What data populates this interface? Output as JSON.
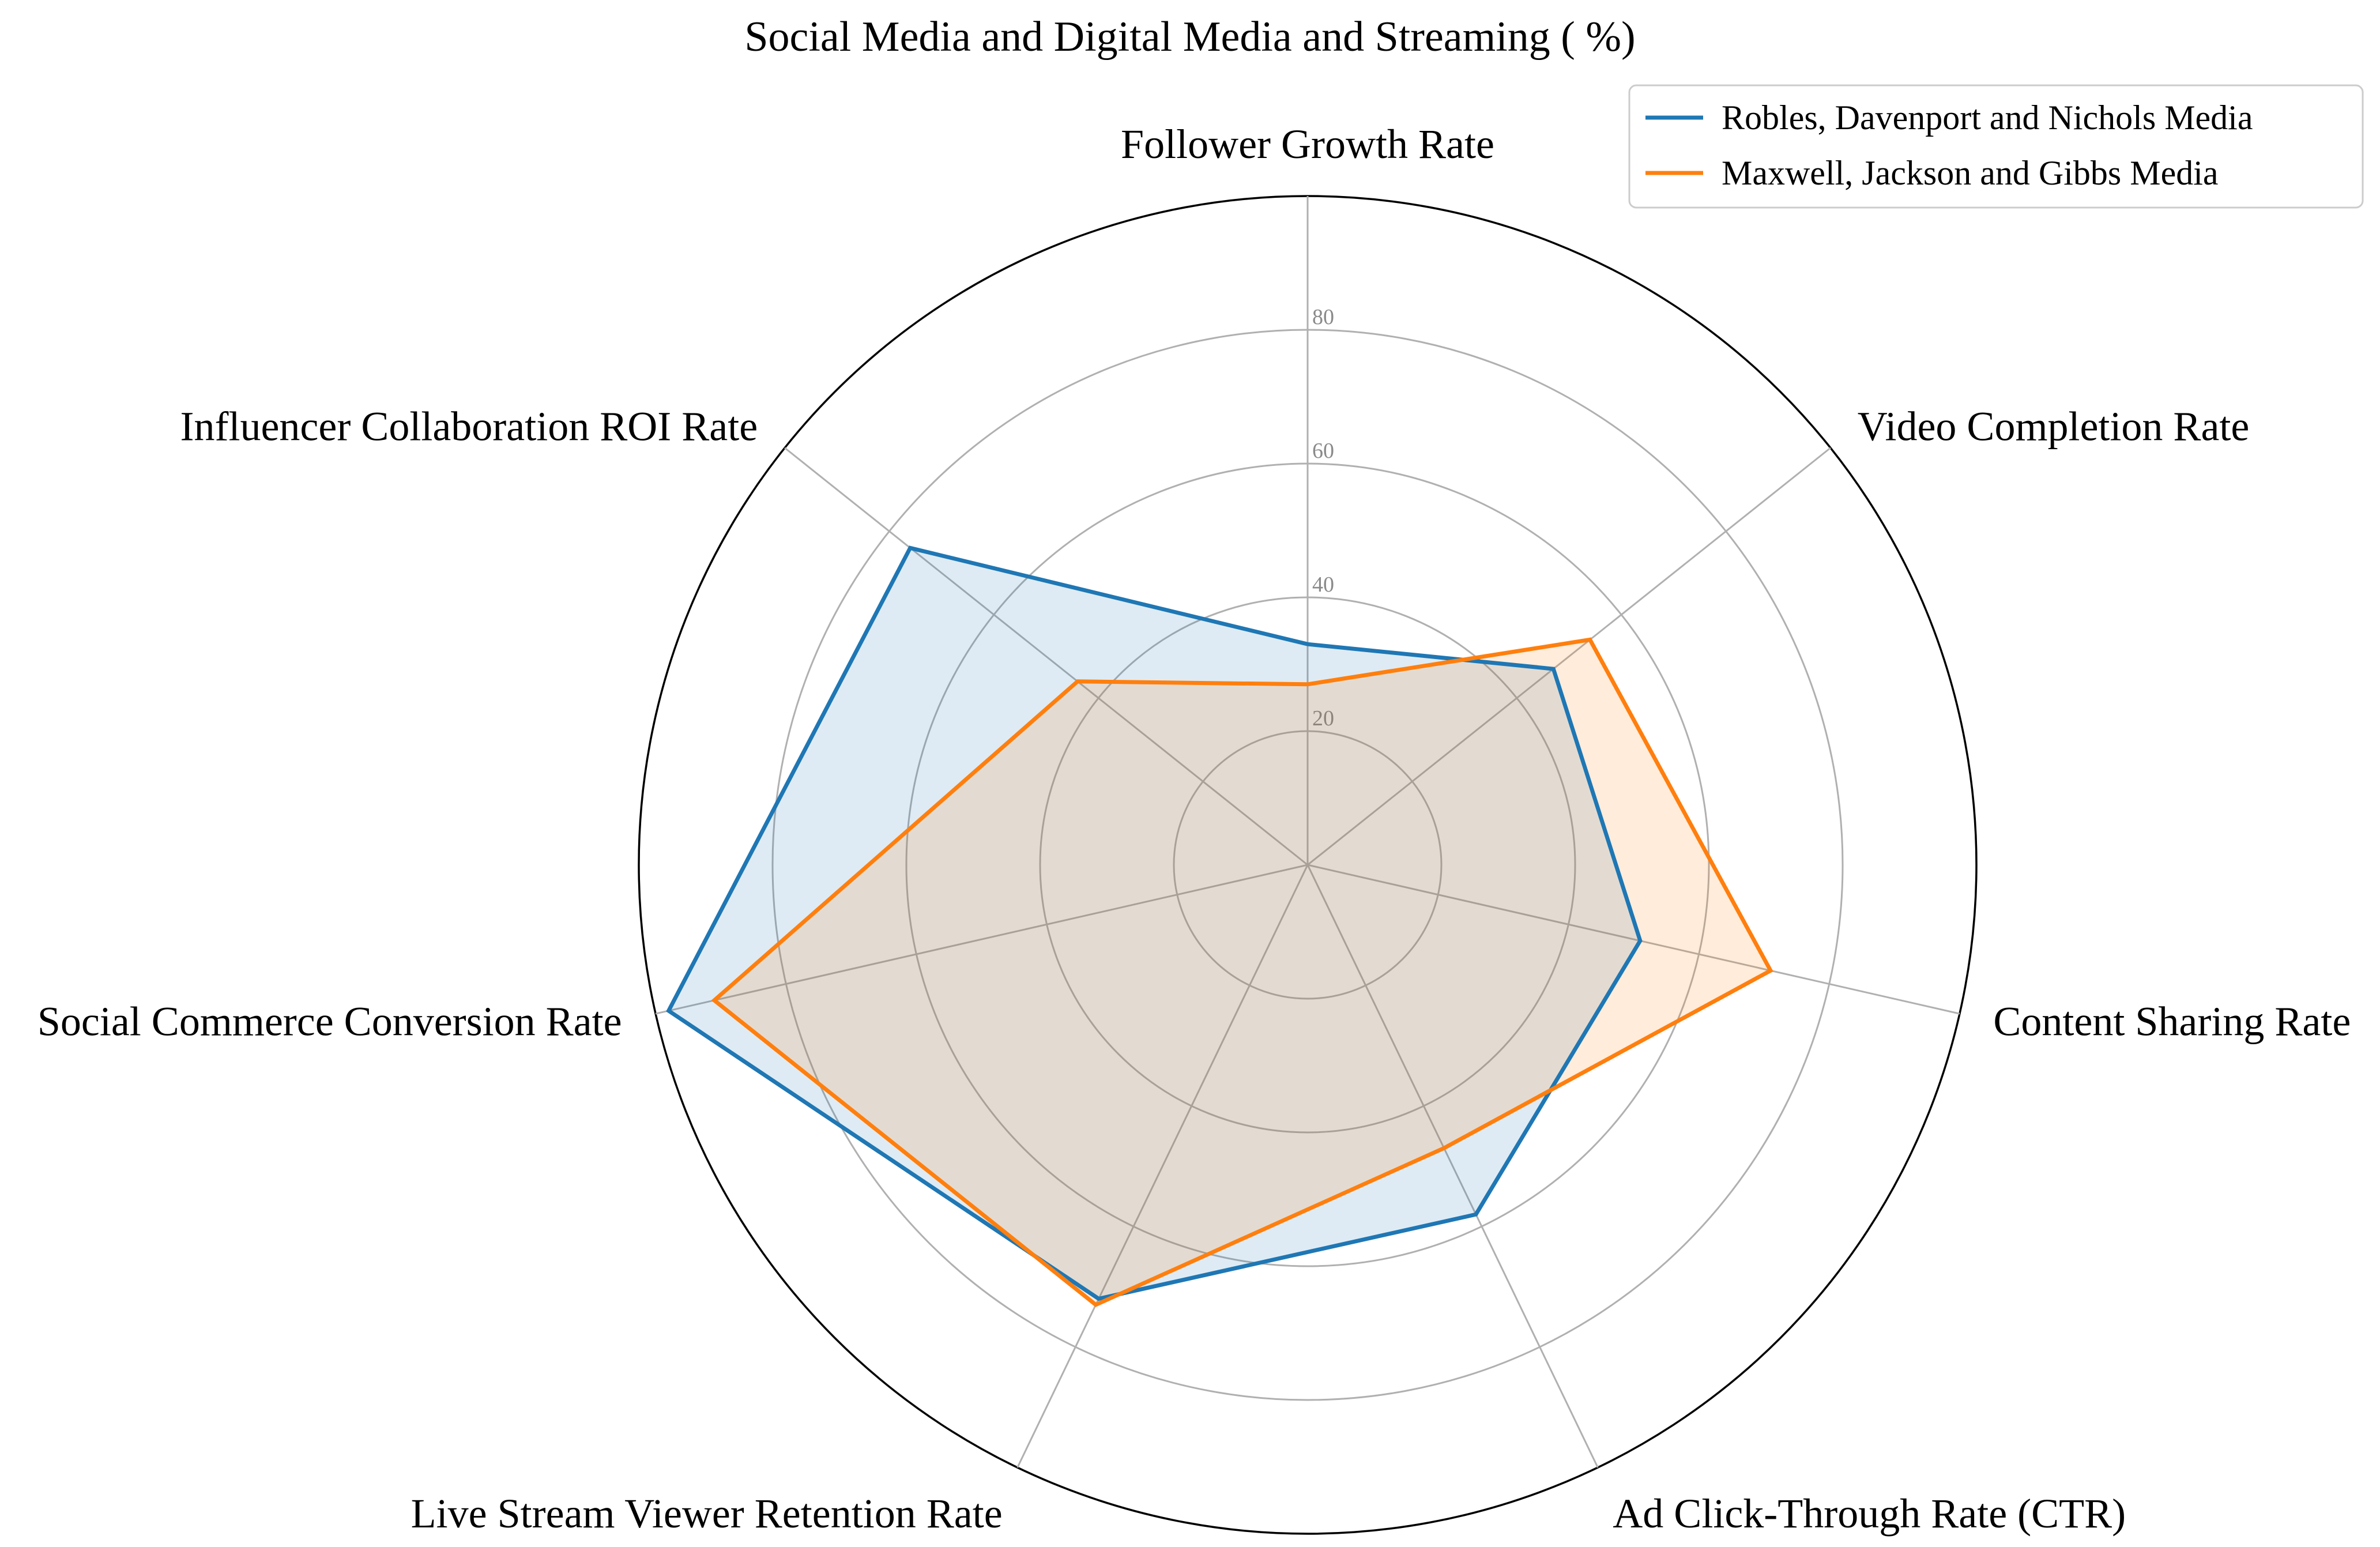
{
  "chart_data": {
    "type": "radar",
    "title": "Social Media and Digital Media and Streaming ( %)",
    "categories": [
      "Follower Growth Rate",
      "Video Completion Rate",
      "Content Sharing Rate",
      "Ad Click-Through Rate (CTR)",
      "Live Stream Viewer Retention Rate",
      "Social Commerce Conversion Rate",
      "Influencer Collaboration ROI Rate"
    ],
    "series": [
      {
        "name": "Robles, Davenport and Nichols Media",
        "color": "#1f77b4",
        "values": [
          33,
          47,
          51,
          58,
          72,
          98,
          76
        ]
      },
      {
        "name": "Maxwell, Jackson and Gibbs Media",
        "color": "#ff7f0e",
        "values": [
          27,
          54,
          71,
          47,
          73,
          91,
          44
        ]
      }
    ],
    "rlim": [
      0,
      100
    ],
    "rticks": [
      20,
      40,
      60,
      80
    ],
    "rtick_labels": [
      "20",
      "40",
      "60",
      "80"
    ],
    "grid": true,
    "legend_position": "upper-right"
  }
}
